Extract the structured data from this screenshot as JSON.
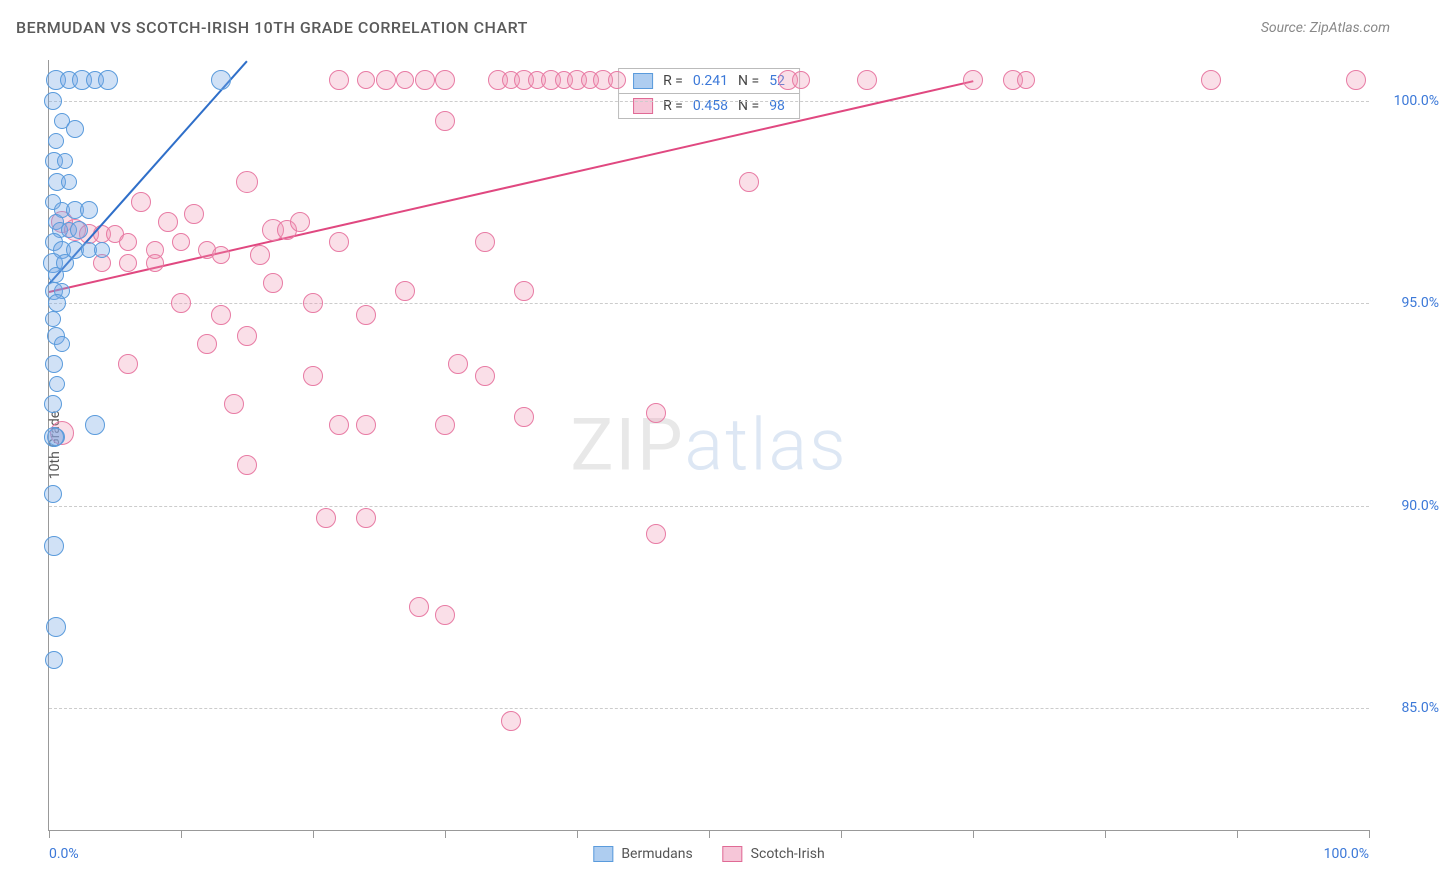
{
  "title": "BERMUDAN VS SCOTCH-IRISH 10TH GRADE CORRELATION CHART",
  "source_label": "Source: ZipAtlas.com",
  "watermark": {
    "part1": "ZIP",
    "part2": "atlas"
  },
  "yaxis_title": "10th Grade",
  "xaxis": {
    "min_label": "0.0%",
    "max_label": "100.0%",
    "ticks_pct": [
      0,
      10,
      20,
      30,
      40,
      50,
      60,
      70,
      80,
      90,
      100
    ]
  },
  "yaxis": {
    "min": 82,
    "max": 101,
    "gridlines": [
      {
        "value": 100,
        "label": "100.0%"
      },
      {
        "value": 95,
        "label": "95.0%"
      },
      {
        "value": 90,
        "label": "90.0%"
      },
      {
        "value": 85,
        "label": "85.0%"
      }
    ]
  },
  "series": {
    "bermudans": {
      "label": "Bermudans",
      "fill": "rgba(120,170,230,0.35)",
      "stroke": "#5a9bdc",
      "swatch_fill": "#aecdf0",
      "swatch_border": "#5a9bdc",
      "R_label": "R =",
      "R": "0.241",
      "N_label": "N =",
      "N": "52",
      "trend": {
        "x1": 0,
        "y1": 95.5,
        "x2": 15,
        "y2": 101,
        "color": "#2f6fc9"
      },
      "points": [
        {
          "x": 0.5,
          "y": 100.5,
          "r": 9
        },
        {
          "x": 1.5,
          "y": 100.5,
          "r": 8
        },
        {
          "x": 2.5,
          "y": 100.5,
          "r": 9
        },
        {
          "x": 3.5,
          "y": 100.5,
          "r": 8
        },
        {
          "x": 4.5,
          "y": 100.5,
          "r": 9
        },
        {
          "x": 13,
          "y": 100.5,
          "r": 9
        },
        {
          "x": 0.3,
          "y": 100,
          "r": 8
        },
        {
          "x": 1,
          "y": 99.5,
          "r": 7
        },
        {
          "x": 2,
          "y": 99.3,
          "r": 8
        },
        {
          "x": 0.5,
          "y": 99,
          "r": 7
        },
        {
          "x": 0.4,
          "y": 98.5,
          "r": 8
        },
        {
          "x": 1.2,
          "y": 98.5,
          "r": 7
        },
        {
          "x": 0.6,
          "y": 98,
          "r": 8
        },
        {
          "x": 1.5,
          "y": 98,
          "r": 7
        },
        {
          "x": 0.3,
          "y": 97.5,
          "r": 7
        },
        {
          "x": 1,
          "y": 97.3,
          "r": 7
        },
        {
          "x": 2,
          "y": 97.3,
          "r": 8
        },
        {
          "x": 3,
          "y": 97.3,
          "r": 8
        },
        {
          "x": 0.5,
          "y": 97,
          "r": 7
        },
        {
          "x": 0.8,
          "y": 96.8,
          "r": 7
        },
        {
          "x": 1.5,
          "y": 96.8,
          "r": 7
        },
        {
          "x": 2.3,
          "y": 96.8,
          "r": 8
        },
        {
          "x": 0.4,
          "y": 96.5,
          "r": 8
        },
        {
          "x": 1,
          "y": 96.3,
          "r": 8
        },
        {
          "x": 2,
          "y": 96.3,
          "r": 8
        },
        {
          "x": 3,
          "y": 96.3,
          "r": 7
        },
        {
          "x": 4,
          "y": 96.3,
          "r": 7
        },
        {
          "x": 0.3,
          "y": 96,
          "r": 9
        },
        {
          "x": 1.2,
          "y": 96,
          "r": 8
        },
        {
          "x": 0.5,
          "y": 95.7,
          "r": 7
        },
        {
          "x": 0.4,
          "y": 95.3,
          "r": 8
        },
        {
          "x": 1,
          "y": 95.3,
          "r": 7
        },
        {
          "x": 0.6,
          "y": 95,
          "r": 8
        },
        {
          "x": 0.3,
          "y": 94.6,
          "r": 7
        },
        {
          "x": 0.5,
          "y": 94.2,
          "r": 8
        },
        {
          "x": 1,
          "y": 94,
          "r": 7
        },
        {
          "x": 0.4,
          "y": 93.5,
          "r": 8
        },
        {
          "x": 0.6,
          "y": 93,
          "r": 7
        },
        {
          "x": 0.3,
          "y": 92.5,
          "r": 8
        },
        {
          "x": 3.5,
          "y": 92,
          "r": 9
        },
        {
          "x": 0.5,
          "y": 91.7,
          "r": 8
        },
        {
          "x": 0.4,
          "y": 91.7,
          "r": 9
        },
        {
          "x": 0.3,
          "y": 90.3,
          "r": 8
        },
        {
          "x": 0.4,
          "y": 89,
          "r": 9
        },
        {
          "x": 0.5,
          "y": 87,
          "r": 9
        },
        {
          "x": 0.4,
          "y": 86.2,
          "r": 8
        }
      ]
    },
    "scotch_irish": {
      "label": "Scotch-Irish",
      "fill": "rgba(240,150,180,0.30)",
      "stroke": "#e87ba4",
      "swatch_fill": "#f6c6d8",
      "swatch_border": "#e06a95",
      "R_label": "R =",
      "R": "0.458",
      "N_label": "N =",
      "N": "98",
      "trend": {
        "x1": 0,
        "y1": 95.3,
        "x2": 70,
        "y2": 100.5,
        "color": "#e04880"
      },
      "points": [
        {
          "x": 22,
          "y": 100.5,
          "r": 9
        },
        {
          "x": 24,
          "y": 100.5,
          "r": 8
        },
        {
          "x": 25.5,
          "y": 100.5,
          "r": 9
        },
        {
          "x": 27,
          "y": 100.5,
          "r": 8
        },
        {
          "x": 28.5,
          "y": 100.5,
          "r": 9
        },
        {
          "x": 30,
          "y": 100.5,
          "r": 9
        },
        {
          "x": 34,
          "y": 100.5,
          "r": 9
        },
        {
          "x": 35,
          "y": 100.5,
          "r": 8
        },
        {
          "x": 36,
          "y": 100.5,
          "r": 9
        },
        {
          "x": 37,
          "y": 100.5,
          "r": 8
        },
        {
          "x": 38,
          "y": 100.5,
          "r": 9
        },
        {
          "x": 39,
          "y": 100.5,
          "r": 8
        },
        {
          "x": 40,
          "y": 100.5,
          "r": 9
        },
        {
          "x": 41,
          "y": 100.5,
          "r": 8
        },
        {
          "x": 42,
          "y": 100.5,
          "r": 9
        },
        {
          "x": 43,
          "y": 100.5,
          "r": 8
        },
        {
          "x": 56,
          "y": 100.5,
          "r": 9
        },
        {
          "x": 57,
          "y": 100.5,
          "r": 8
        },
        {
          "x": 62,
          "y": 100.5,
          "r": 9
        },
        {
          "x": 70,
          "y": 100.5,
          "r": 9
        },
        {
          "x": 73,
          "y": 100.5,
          "r": 9
        },
        {
          "x": 74,
          "y": 100.5,
          "r": 8
        },
        {
          "x": 88,
          "y": 100.5,
          "r": 9
        },
        {
          "x": 99,
          "y": 100.5,
          "r": 9
        },
        {
          "x": 30,
          "y": 99.5,
          "r": 9
        },
        {
          "x": 53,
          "y": 98,
          "r": 9
        },
        {
          "x": 1,
          "y": 97,
          "r": 10
        },
        {
          "x": 2,
          "y": 96.8,
          "r": 10
        },
        {
          "x": 3,
          "y": 96.7,
          "r": 9
        },
        {
          "x": 4,
          "y": 96.7,
          "r": 8
        },
        {
          "x": 5,
          "y": 96.7,
          "r": 8
        },
        {
          "x": 7,
          "y": 97.5,
          "r": 9
        },
        {
          "x": 9,
          "y": 97,
          "r": 9
        },
        {
          "x": 11,
          "y": 97.2,
          "r": 9
        },
        {
          "x": 15,
          "y": 98,
          "r": 10
        },
        {
          "x": 6,
          "y": 96.5,
          "r": 8
        },
        {
          "x": 8,
          "y": 96.3,
          "r": 8
        },
        {
          "x": 10,
          "y": 96.5,
          "r": 8
        },
        {
          "x": 12,
          "y": 96.3,
          "r": 8
        },
        {
          "x": 4,
          "y": 96,
          "r": 8
        },
        {
          "x": 6,
          "y": 96,
          "r": 8
        },
        {
          "x": 8,
          "y": 96,
          "r": 8
        },
        {
          "x": 13,
          "y": 96.2,
          "r": 8
        },
        {
          "x": 17,
          "y": 96.8,
          "r": 10
        },
        {
          "x": 18,
          "y": 96.8,
          "r": 9
        },
        {
          "x": 16,
          "y": 96.2,
          "r": 9
        },
        {
          "x": 19,
          "y": 97,
          "r": 9
        },
        {
          "x": 22,
          "y": 96.5,
          "r": 9
        },
        {
          "x": 33,
          "y": 96.5,
          "r": 9
        },
        {
          "x": 10,
          "y": 95,
          "r": 9
        },
        {
          "x": 13,
          "y": 94.7,
          "r": 9
        },
        {
          "x": 17,
          "y": 95.5,
          "r": 9
        },
        {
          "x": 20,
          "y": 95,
          "r": 9
        },
        {
          "x": 12,
          "y": 94,
          "r": 9
        },
        {
          "x": 15,
          "y": 94.2,
          "r": 9
        },
        {
          "x": 24,
          "y": 94.7,
          "r": 9
        },
        {
          "x": 27,
          "y": 95.3,
          "r": 9
        },
        {
          "x": 36,
          "y": 95.3,
          "r": 9
        },
        {
          "x": 6,
          "y": 93.5,
          "r": 9
        },
        {
          "x": 20,
          "y": 93.2,
          "r": 9
        },
        {
          "x": 31,
          "y": 93.5,
          "r": 9
        },
        {
          "x": 33,
          "y": 93.2,
          "r": 9
        },
        {
          "x": 14,
          "y": 92.5,
          "r": 9
        },
        {
          "x": 22,
          "y": 92,
          "r": 9
        },
        {
          "x": 24,
          "y": 92,
          "r": 9
        },
        {
          "x": 30,
          "y": 92,
          "r": 9
        },
        {
          "x": 36,
          "y": 92.2,
          "r": 9
        },
        {
          "x": 1,
          "y": 91.8,
          "r": 11
        },
        {
          "x": 15,
          "y": 91,
          "r": 9
        },
        {
          "x": 46,
          "y": 92.3,
          "r": 9
        },
        {
          "x": 21,
          "y": 89.7,
          "r": 9
        },
        {
          "x": 24,
          "y": 89.7,
          "r": 9
        },
        {
          "x": 46,
          "y": 89.3,
          "r": 9
        },
        {
          "x": 28,
          "y": 87.5,
          "r": 9
        },
        {
          "x": 30,
          "y": 87.3,
          "r": 9
        },
        {
          "x": 35,
          "y": 84.7,
          "r": 9
        }
      ]
    }
  }
}
